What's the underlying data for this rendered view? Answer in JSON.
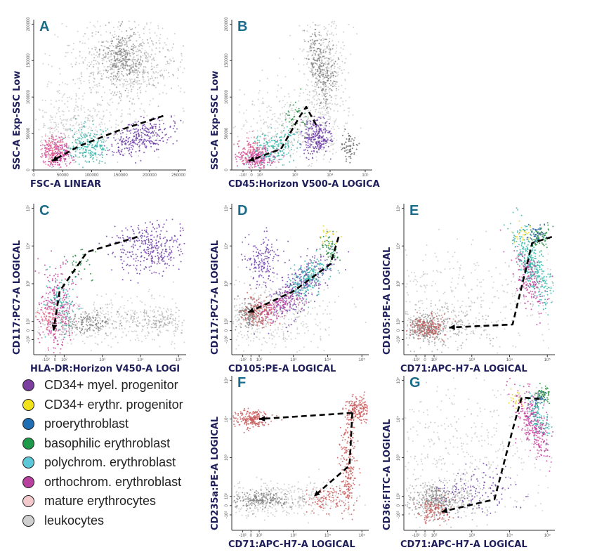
{
  "chart_data": [
    {
      "panel": "A",
      "type": "scatter",
      "xlabel": "FSC-A LINEAR",
      "ylabel": "SSC-A Exp-SSC Low",
      "xticks": [
        "0",
        "50000",
        "100000",
        "150000",
        "200000",
        "250000"
      ],
      "yticks": [
        "0",
        "50000",
        "100000",
        "150000",
        "200000"
      ],
      "xlim": [
        0,
        250000
      ],
      "ylim": [
        0,
        200000
      ]
    },
    {
      "panel": "B",
      "type": "scatter",
      "xlabel": "CD45:Horizon V500-A LOGICA",
      "ylabel": "SSC-A Exp-SSC Low",
      "xticks": [
        "-10²",
        "0",
        "10²",
        "10³",
        "10⁴",
        "10⁵"
      ],
      "yticks": [
        "0",
        "50000",
        "100000",
        "150000",
        "200000"
      ],
      "ylim": [
        0,
        200000
      ]
    },
    {
      "panel": "C",
      "type": "scatter",
      "xlabel": "HLA-DR:Horizon V450-A LOGI",
      "ylabel": "CD117:PC7-A LOGICAL",
      "xticks": [
        "-10²",
        "0",
        "10²",
        "10³",
        "10⁴",
        "10⁵"
      ],
      "yticks": [
        "-10²",
        "0",
        "10²",
        "10³",
        "10⁴",
        "10⁵"
      ]
    },
    {
      "panel": "D",
      "type": "scatter",
      "xlabel": "CD105:PE-A LOGICAL",
      "ylabel": "CD117:PC7-A LOGICAL",
      "xticks": [
        "-10²",
        "0",
        "10²",
        "10³",
        "10⁴",
        "10⁵"
      ],
      "yticks": [
        "-10²",
        "0",
        "10²",
        "10³",
        "10⁴",
        "10⁵"
      ]
    },
    {
      "panel": "E",
      "type": "scatter",
      "xlabel": "CD71:APC-H7-A LOGICAL",
      "ylabel": "CD105:PE-A LOGICAL",
      "xticks": [
        "-10²",
        "0",
        "10²",
        "10³",
        "10⁴",
        "10⁵"
      ],
      "yticks": [
        "-10²",
        "0",
        "10²",
        "10³",
        "10⁴",
        "10⁵"
      ]
    },
    {
      "panel": "F",
      "type": "scatter",
      "xlabel": "CD71:APC-H7-A LOGICAL",
      "ylabel": "CD235a:PE-A LOGICAL",
      "xticks": [
        "-10²",
        "0",
        "10²",
        "10³",
        "10⁴",
        "10⁵"
      ],
      "yticks": [
        "-10²",
        "0",
        "10²",
        "10³",
        "10⁴",
        "10⁵"
      ]
    },
    {
      "panel": "G",
      "type": "scatter",
      "xlabel": "CD71:APC-H7-A LOGICAL",
      "ylabel": "CD36:FITC-A LOGICAL",
      "xticks": [
        "-10²",
        "0",
        "10²",
        "10³",
        "10⁴",
        "10⁵"
      ],
      "yticks": [
        "-10²",
        "0",
        "10²",
        "10³",
        "10⁴",
        "10⁵"
      ]
    }
  ],
  "legend": [
    {
      "label": "CD34+ myel. progenitor",
      "color": "#7b3fa0"
    },
    {
      "label": "CD34+ erythr. progenitor",
      "color": "#f2e21c"
    },
    {
      "label": "proerythroblast",
      "color": "#1f6db3"
    },
    {
      "label": "basophilic erythroblast",
      "color": "#1e9a4a"
    },
    {
      "label": "polychrom. erythroblast",
      "color": "#5cc8d8"
    },
    {
      "label": "orthochrom. erythroblast",
      "color": "#b8409e"
    },
    {
      "label": "mature erythrocytes",
      "color": "#f3c9cc"
    },
    {
      "label": "leukocytes",
      "color": "#cfcfcf"
    }
  ]
}
